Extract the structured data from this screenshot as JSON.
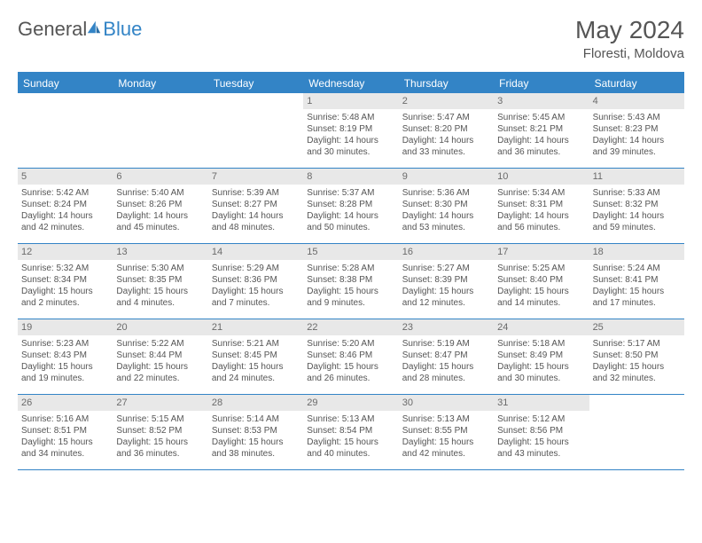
{
  "logo": {
    "text1": "General",
    "text2": "Blue"
  },
  "title": "May 2024",
  "location": "Floresti, Moldova",
  "colors": {
    "accent": "#3384c6",
    "dow_bg": "#3384c6",
    "dow_text": "#ffffff",
    "daynum_bg": "#e8e8e8",
    "text": "#555555",
    "grid_border": "#3384c6"
  },
  "typography": {
    "title_fontsize": 28,
    "location_fontsize": 15,
    "dow_fontsize": 12,
    "daynum_fontsize": 11,
    "body_fontsize": 10
  },
  "days_of_week": [
    "Sunday",
    "Monday",
    "Tuesday",
    "Wednesday",
    "Thursday",
    "Friday",
    "Saturday"
  ],
  "weeks": [
    [
      null,
      null,
      null,
      {
        "n": "1",
        "sunrise": "Sunrise: 5:48 AM",
        "sunset": "Sunset: 8:19 PM",
        "daylight": "Daylight: 14 hours and 30 minutes."
      },
      {
        "n": "2",
        "sunrise": "Sunrise: 5:47 AM",
        "sunset": "Sunset: 8:20 PM",
        "daylight": "Daylight: 14 hours and 33 minutes."
      },
      {
        "n": "3",
        "sunrise": "Sunrise: 5:45 AM",
        "sunset": "Sunset: 8:21 PM",
        "daylight": "Daylight: 14 hours and 36 minutes."
      },
      {
        "n": "4",
        "sunrise": "Sunrise: 5:43 AM",
        "sunset": "Sunset: 8:23 PM",
        "daylight": "Daylight: 14 hours and 39 minutes."
      }
    ],
    [
      {
        "n": "5",
        "sunrise": "Sunrise: 5:42 AM",
        "sunset": "Sunset: 8:24 PM",
        "daylight": "Daylight: 14 hours and 42 minutes."
      },
      {
        "n": "6",
        "sunrise": "Sunrise: 5:40 AM",
        "sunset": "Sunset: 8:26 PM",
        "daylight": "Daylight: 14 hours and 45 minutes."
      },
      {
        "n": "7",
        "sunrise": "Sunrise: 5:39 AM",
        "sunset": "Sunset: 8:27 PM",
        "daylight": "Daylight: 14 hours and 48 minutes."
      },
      {
        "n": "8",
        "sunrise": "Sunrise: 5:37 AM",
        "sunset": "Sunset: 8:28 PM",
        "daylight": "Daylight: 14 hours and 50 minutes."
      },
      {
        "n": "9",
        "sunrise": "Sunrise: 5:36 AM",
        "sunset": "Sunset: 8:30 PM",
        "daylight": "Daylight: 14 hours and 53 minutes."
      },
      {
        "n": "10",
        "sunrise": "Sunrise: 5:34 AM",
        "sunset": "Sunset: 8:31 PM",
        "daylight": "Daylight: 14 hours and 56 minutes."
      },
      {
        "n": "11",
        "sunrise": "Sunrise: 5:33 AM",
        "sunset": "Sunset: 8:32 PM",
        "daylight": "Daylight: 14 hours and 59 minutes."
      }
    ],
    [
      {
        "n": "12",
        "sunrise": "Sunrise: 5:32 AM",
        "sunset": "Sunset: 8:34 PM",
        "daylight": "Daylight: 15 hours and 2 minutes."
      },
      {
        "n": "13",
        "sunrise": "Sunrise: 5:30 AM",
        "sunset": "Sunset: 8:35 PM",
        "daylight": "Daylight: 15 hours and 4 minutes."
      },
      {
        "n": "14",
        "sunrise": "Sunrise: 5:29 AM",
        "sunset": "Sunset: 8:36 PM",
        "daylight": "Daylight: 15 hours and 7 minutes."
      },
      {
        "n": "15",
        "sunrise": "Sunrise: 5:28 AM",
        "sunset": "Sunset: 8:38 PM",
        "daylight": "Daylight: 15 hours and 9 minutes."
      },
      {
        "n": "16",
        "sunrise": "Sunrise: 5:27 AM",
        "sunset": "Sunset: 8:39 PM",
        "daylight": "Daylight: 15 hours and 12 minutes."
      },
      {
        "n": "17",
        "sunrise": "Sunrise: 5:25 AM",
        "sunset": "Sunset: 8:40 PM",
        "daylight": "Daylight: 15 hours and 14 minutes."
      },
      {
        "n": "18",
        "sunrise": "Sunrise: 5:24 AM",
        "sunset": "Sunset: 8:41 PM",
        "daylight": "Daylight: 15 hours and 17 minutes."
      }
    ],
    [
      {
        "n": "19",
        "sunrise": "Sunrise: 5:23 AM",
        "sunset": "Sunset: 8:43 PM",
        "daylight": "Daylight: 15 hours and 19 minutes."
      },
      {
        "n": "20",
        "sunrise": "Sunrise: 5:22 AM",
        "sunset": "Sunset: 8:44 PM",
        "daylight": "Daylight: 15 hours and 22 minutes."
      },
      {
        "n": "21",
        "sunrise": "Sunrise: 5:21 AM",
        "sunset": "Sunset: 8:45 PM",
        "daylight": "Daylight: 15 hours and 24 minutes."
      },
      {
        "n": "22",
        "sunrise": "Sunrise: 5:20 AM",
        "sunset": "Sunset: 8:46 PM",
        "daylight": "Daylight: 15 hours and 26 minutes."
      },
      {
        "n": "23",
        "sunrise": "Sunrise: 5:19 AM",
        "sunset": "Sunset: 8:47 PM",
        "daylight": "Daylight: 15 hours and 28 minutes."
      },
      {
        "n": "24",
        "sunrise": "Sunrise: 5:18 AM",
        "sunset": "Sunset: 8:49 PM",
        "daylight": "Daylight: 15 hours and 30 minutes."
      },
      {
        "n": "25",
        "sunrise": "Sunrise: 5:17 AM",
        "sunset": "Sunset: 8:50 PM",
        "daylight": "Daylight: 15 hours and 32 minutes."
      }
    ],
    [
      {
        "n": "26",
        "sunrise": "Sunrise: 5:16 AM",
        "sunset": "Sunset: 8:51 PM",
        "daylight": "Daylight: 15 hours and 34 minutes."
      },
      {
        "n": "27",
        "sunrise": "Sunrise: 5:15 AM",
        "sunset": "Sunset: 8:52 PM",
        "daylight": "Daylight: 15 hours and 36 minutes."
      },
      {
        "n": "28",
        "sunrise": "Sunrise: 5:14 AM",
        "sunset": "Sunset: 8:53 PM",
        "daylight": "Daylight: 15 hours and 38 minutes."
      },
      {
        "n": "29",
        "sunrise": "Sunrise: 5:13 AM",
        "sunset": "Sunset: 8:54 PM",
        "daylight": "Daylight: 15 hours and 40 minutes."
      },
      {
        "n": "30",
        "sunrise": "Sunrise: 5:13 AM",
        "sunset": "Sunset: 8:55 PM",
        "daylight": "Daylight: 15 hours and 42 minutes."
      },
      {
        "n": "31",
        "sunrise": "Sunrise: 5:12 AM",
        "sunset": "Sunset: 8:56 PM",
        "daylight": "Daylight: 15 hours and 43 minutes."
      },
      null
    ]
  ]
}
